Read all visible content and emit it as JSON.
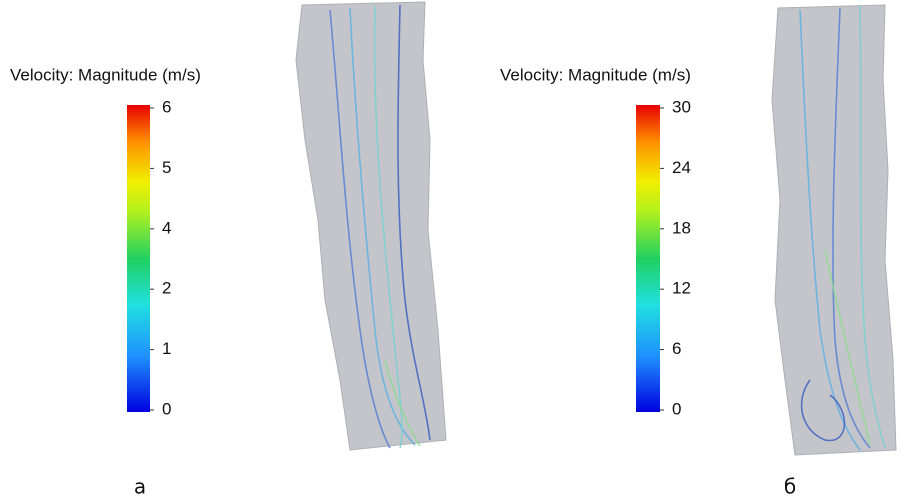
{
  "panels": [
    {
      "colorbar": {
        "title": "Velocity: Magnitude (m/s)",
        "ticks": [
          0,
          1,
          2,
          4,
          5,
          6
        ]
      },
      "label": "а"
    },
    {
      "colorbar": {
        "title": "Velocity: Magnitude (m/s)",
        "ticks": [
          0,
          6,
          12,
          18,
          24,
          30
        ]
      },
      "label": "б"
    }
  ]
}
